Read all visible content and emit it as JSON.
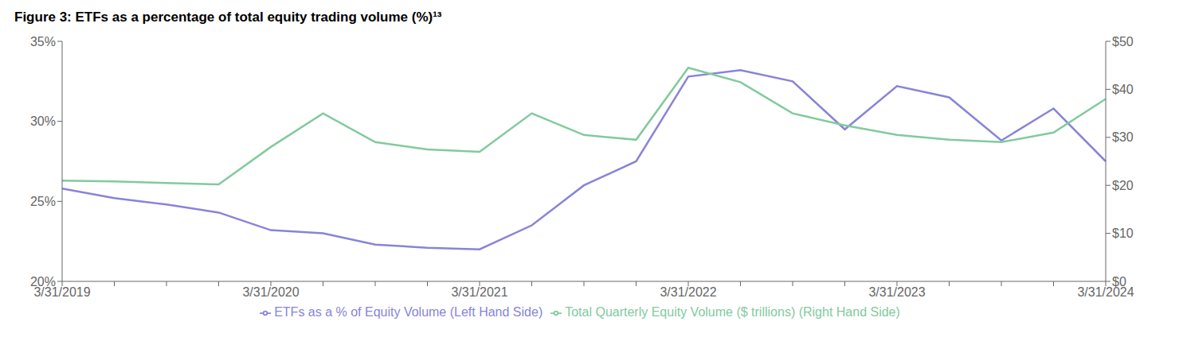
{
  "chart_data": {
    "type": "line",
    "title": "Figure 3: ETFs as a percentage of total equity trading volume (%)¹³",
    "categories": [
      "3/31/2019",
      null,
      null,
      null,
      "3/31/2020",
      null,
      null,
      null,
      "3/31/2021",
      null,
      null,
      null,
      "3/31/2022",
      null,
      null,
      null,
      "3/31/2023",
      null,
      null,
      null,
      "3/31/2024"
    ],
    "series": [
      {
        "name": "ETFs as a % of Equity Volume (Left Hand Side)",
        "values": [
          25.8,
          25.2,
          24.8,
          24.3,
          23.2,
          23.0,
          22.3,
          22.1,
          22.0,
          23.5,
          26.0,
          27.5,
          32.8,
          33.2,
          32.5,
          29.5,
          32.2,
          31.5,
          28.8,
          30.8,
          27.5
        ]
      },
      {
        "name": "Total Quarterly Equity Volume ($ trillions) (Right Hand Side)",
        "axis": "y2",
        "values": [
          21.0,
          20.8,
          20.5,
          20.2,
          28.0,
          35.0,
          29.0,
          27.5,
          27.0,
          35.0,
          30.5,
          29.5,
          44.5,
          41.5,
          35.0,
          32.5,
          30.5,
          29.5,
          29.0,
          31.0,
          38.0
        ]
      }
    ],
    "ylim": [
      20,
      35
    ],
    "yticks": [
      {
        "value": 20,
        "label": "20%"
      },
      {
        "value": 25,
        "label": "25%"
      },
      {
        "value": 30,
        "label": "30%"
      },
      {
        "value": 35,
        "label": "35%"
      }
    ],
    "y2lim": [
      0,
      50
    ],
    "y2ticks": [
      {
        "value": 0,
        "label": "$0"
      },
      {
        "value": 10,
        "label": "$10"
      },
      {
        "value": 20,
        "label": "$20"
      },
      {
        "value": 30,
        "label": "$30"
      },
      {
        "value": 40,
        "label": "$40"
      },
      {
        "value": 50,
        "label": "$50"
      }
    ],
    "grid": false,
    "legend": "bottom"
  }
}
